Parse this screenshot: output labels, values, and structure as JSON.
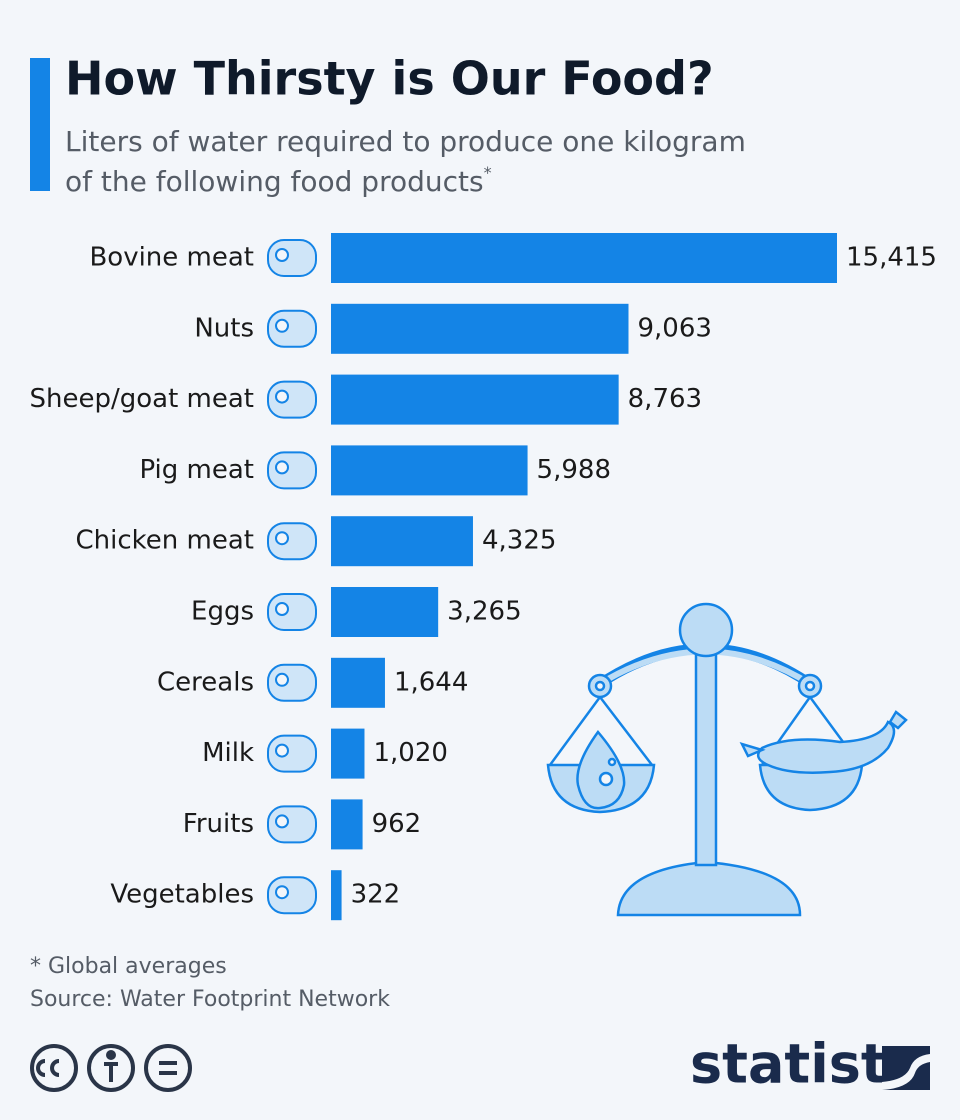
{
  "chart_data": {
    "type": "bar",
    "orientation": "horizontal",
    "title": "How Thirsty is Our Food?",
    "subtitle": [
      "Liters of water required to produce one kilogram",
      "of the following food products"
    ],
    "subtitle_note": "*",
    "categories": [
      "Bovine meat",
      "Nuts",
      "Sheep/goat meat",
      "Pig meat",
      "Chicken meat",
      "Eggs",
      "Cereals",
      "Milk",
      "Fruits",
      "Vegetables"
    ],
    "values": [
      15415,
      9063,
      8763,
      5988,
      4325,
      3265,
      1644,
      1020,
      962,
      322
    ],
    "value_labels": [
      "15,415",
      "9,063",
      "8,763",
      "5,988",
      "4,325",
      "3,265",
      "1,644",
      "1,020",
      "962",
      "322"
    ],
    "color": "#1484e6",
    "footnote": "* Global averages",
    "source": "Source: Water Footprint Network",
    "brand": "statista"
  }
}
